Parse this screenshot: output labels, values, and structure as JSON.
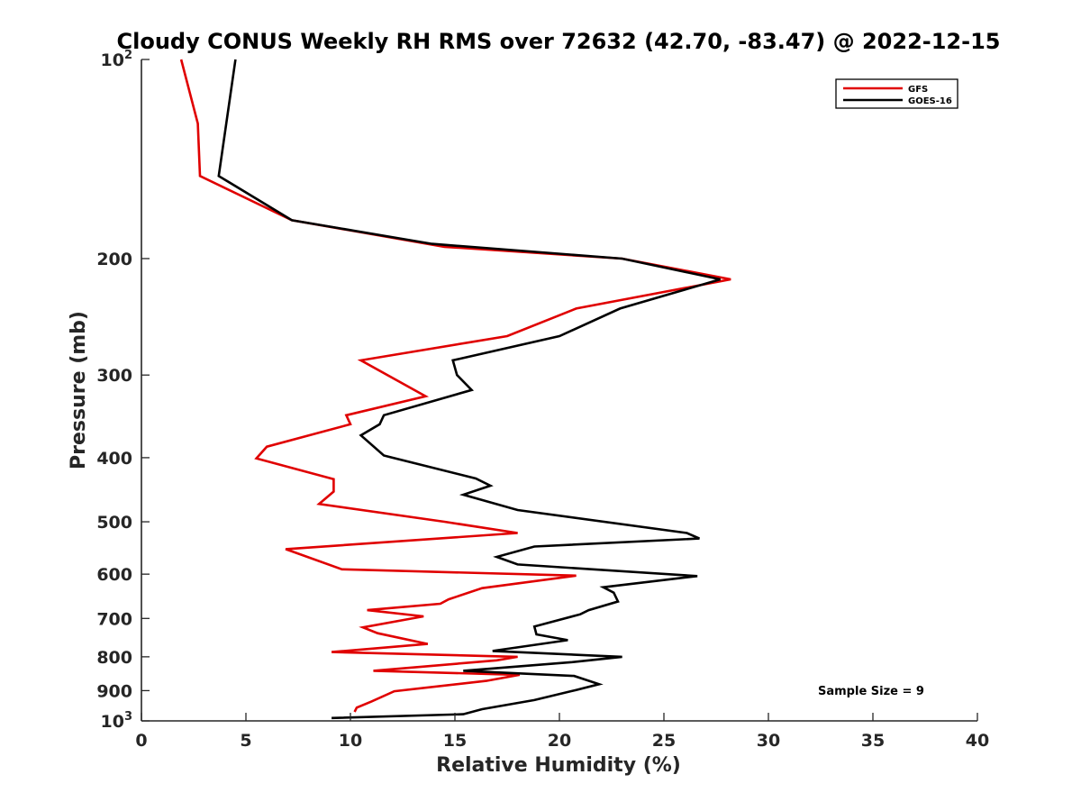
{
  "chart_data": {
    "type": "line",
    "title": "Cloudy CONUS Weekly RH RMS over 72632 (42.70, -83.47) @ 2022-12-15",
    "xlabel": "Relative Humidity (%)",
    "ylabel": "Pressure (mb)",
    "xlim": [
      0,
      40
    ],
    "ylim": [
      1000,
      100
    ],
    "y_scale": "log",
    "y_reversed": true,
    "x_ticks": [
      0,
      5,
      10,
      15,
      20,
      25,
      30,
      35,
      40
    ],
    "y_ticks": [
      {
        "value": 100,
        "base": "10",
        "exp": "2"
      },
      {
        "value": 200,
        "label": "200"
      },
      {
        "value": 300,
        "label": "300"
      },
      {
        "value": 400,
        "label": "400"
      },
      {
        "value": 500,
        "label": "500"
      },
      {
        "value": 600,
        "label": "600"
      },
      {
        "value": 700,
        "label": "700"
      },
      {
        "value": 800,
        "label": "800"
      },
      {
        "value": 900,
        "label": "900"
      },
      {
        "value": 1000,
        "base": "10",
        "exp": "3"
      }
    ],
    "grid": false,
    "legend_position": "top-right",
    "annotation": "Sample Size = 9",
    "series": [
      {
        "name": "GFS",
        "color": "#e00000",
        "points": [
          [
            1.9,
            100
          ],
          [
            2.7,
            125
          ],
          [
            2.8,
            150
          ],
          [
            7.2,
            175
          ],
          [
            14.5,
            192
          ],
          [
            23.0,
            200
          ],
          [
            28.2,
            215
          ],
          [
            20.8,
            238
          ],
          [
            17.5,
            262
          ],
          [
            10.5,
            285
          ],
          [
            13.6,
            323
          ],
          [
            9.8,
            345
          ],
          [
            10.0,
            356
          ],
          [
            6.0,
            385
          ],
          [
            5.5,
            401
          ],
          [
            9.2,
            431
          ],
          [
            9.2,
            450
          ],
          [
            8.5,
            470
          ],
          [
            14.5,
            500
          ],
          [
            18.0,
            520
          ],
          [
            6.9,
            550
          ],
          [
            9.6,
            590
          ],
          [
            20.8,
            603
          ],
          [
            16.3,
            630
          ],
          [
            14.7,
            655
          ],
          [
            14.3,
            665
          ],
          [
            10.8,
            680
          ],
          [
            13.5,
            695
          ],
          [
            10.6,
            722
          ],
          [
            11.3,
            737
          ],
          [
            13.7,
            765
          ],
          [
            9.1,
            787
          ],
          [
            18.0,
            800
          ],
          [
            17.0,
            810
          ],
          [
            11.1,
            840
          ],
          [
            18.1,
            852
          ],
          [
            16.5,
            870
          ],
          [
            12.1,
            902
          ],
          [
            11.0,
            935
          ],
          [
            10.3,
            955
          ],
          [
            10.2,
            969
          ]
        ]
      },
      {
        "name": "GOES-16",
        "color": "#000000",
        "points": [
          [
            4.5,
            100
          ],
          [
            3.7,
            150
          ],
          [
            7.2,
            175
          ],
          [
            13.9,
            190
          ],
          [
            23.0,
            200
          ],
          [
            27.7,
            215
          ],
          [
            22.9,
            238
          ],
          [
            20.0,
            262
          ],
          [
            14.9,
            285
          ],
          [
            15.1,
            300
          ],
          [
            15.8,
            316
          ],
          [
            11.6,
            345
          ],
          [
            11.4,
            356
          ],
          [
            10.5,
            370
          ],
          [
            11.6,
            397
          ],
          [
            16.0,
            430
          ],
          [
            16.7,
            441
          ],
          [
            15.4,
            455
          ],
          [
            18.0,
            480
          ],
          [
            26.1,
            520
          ],
          [
            26.7,
            530
          ],
          [
            18.8,
            545
          ],
          [
            17.0,
            565
          ],
          [
            18.0,
            580
          ],
          [
            26.6,
            604
          ],
          [
            22.1,
            628
          ],
          [
            22.6,
            640
          ],
          [
            22.8,
            660
          ],
          [
            21.4,
            680
          ],
          [
            21.0,
            690
          ],
          [
            18.8,
            720
          ],
          [
            18.9,
            740
          ],
          [
            20.4,
            755
          ],
          [
            16.8,
            784
          ],
          [
            23.0,
            800
          ],
          [
            20.6,
            815
          ],
          [
            15.4,
            840
          ],
          [
            20.7,
            855
          ],
          [
            21.9,
            880
          ],
          [
            20.8,
            898
          ],
          [
            18.8,
            930
          ],
          [
            16.3,
            960
          ],
          [
            15.4,
            977
          ],
          [
            9.1,
            990
          ]
        ]
      }
    ]
  }
}
